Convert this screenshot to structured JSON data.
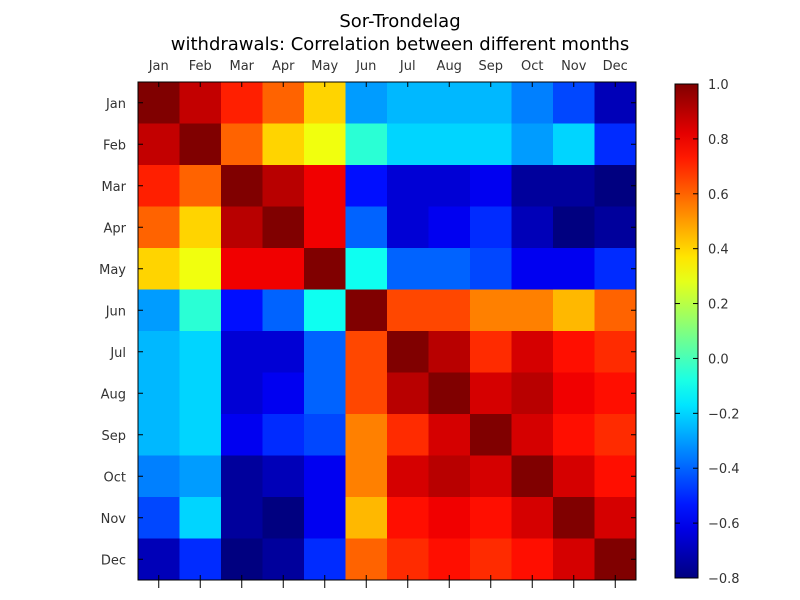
{
  "chart_data": {
    "type": "heatmap",
    "title": "Sor-Trondelag",
    "subtitle": "withdrawals: Correlation between different months",
    "xlabels": [
      "Jan",
      "Feb",
      "Mar",
      "Apr",
      "May",
      "Jun",
      "Jul",
      "Aug",
      "Sep",
      "Oct",
      "Nov",
      "Dec"
    ],
    "ylabels": [
      "Jan",
      "Feb",
      "Mar",
      "Apr",
      "May",
      "Jun",
      "Jul",
      "Aug",
      "Sep",
      "Oct",
      "Nov",
      "Dec"
    ],
    "colormap": "jet",
    "vmin": -0.8,
    "vmax": 1.0,
    "colorbar_ticks": [
      1.0,
      0.8,
      0.6,
      0.4,
      0.2,
      0.0,
      -0.2,
      -0.4,
      -0.6,
      -0.8
    ],
    "colorbar_tick_labels": [
      "1.0",
      "0.8",
      "0.6",
      "0.4",
      "0.2",
      "0.0",
      "−0.2",
      "−0.4",
      "−0.6",
      "−0.8"
    ],
    "matrix": [
      [
        1.0,
        0.88,
        0.72,
        0.6,
        0.4,
        -0.3,
        -0.25,
        -0.25,
        -0.25,
        -0.35,
        -0.45,
        -0.7
      ],
      [
        0.88,
        1.0,
        0.6,
        0.4,
        0.3,
        -0.05,
        -0.2,
        -0.2,
        -0.2,
        -0.3,
        -0.2,
        -0.5
      ],
      [
        0.72,
        0.6,
        1.0,
        0.9,
        0.8,
        -0.55,
        -0.65,
        -0.65,
        -0.6,
        -0.75,
        -0.75,
        -0.8
      ],
      [
        0.6,
        0.4,
        0.9,
        1.0,
        0.8,
        -0.4,
        -0.65,
        -0.6,
        -0.5,
        -0.7,
        -0.8,
        -0.75
      ],
      [
        0.4,
        0.3,
        0.8,
        0.8,
        1.0,
        -0.1,
        -0.4,
        -0.4,
        -0.45,
        -0.6,
        -0.6,
        -0.5
      ],
      [
        -0.3,
        -0.05,
        -0.55,
        -0.4,
        -0.1,
        1.0,
        0.65,
        0.65,
        0.55,
        0.55,
        0.45,
        0.6
      ],
      [
        -0.25,
        -0.2,
        -0.65,
        -0.65,
        -0.4,
        0.65,
        1.0,
        0.9,
        0.7,
        0.85,
        0.75,
        0.7
      ],
      [
        -0.25,
        -0.2,
        -0.65,
        -0.6,
        -0.4,
        0.65,
        0.9,
        1.0,
        0.85,
        0.9,
        0.8,
        0.75
      ],
      [
        -0.25,
        -0.2,
        -0.6,
        -0.5,
        -0.45,
        0.55,
        0.7,
        0.85,
        1.0,
        0.85,
        0.75,
        0.7
      ],
      [
        -0.35,
        -0.3,
        -0.75,
        -0.7,
        -0.6,
        0.55,
        0.85,
        0.9,
        0.85,
        1.0,
        0.85,
        0.75
      ],
      [
        -0.45,
        -0.2,
        -0.75,
        -0.8,
        -0.6,
        0.45,
        0.75,
        0.8,
        0.75,
        0.85,
        1.0,
        0.85
      ],
      [
        -0.7,
        -0.5,
        -0.8,
        -0.75,
        -0.5,
        0.6,
        0.7,
        0.75,
        0.7,
        0.75,
        0.85,
        1.0
      ]
    ]
  }
}
